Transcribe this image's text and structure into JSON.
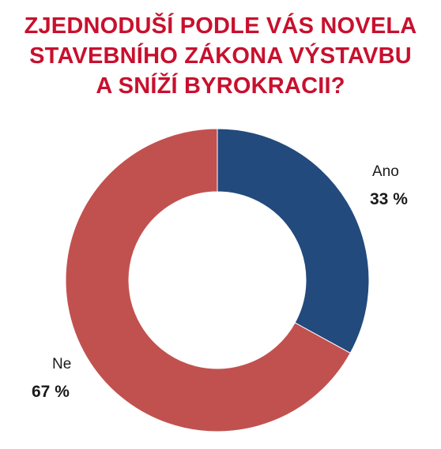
{
  "title_lines": [
    "ZJEDNODUŠÍ PODLE VÁS NOVELA",
    "STAVEBNÍHO ZÁKONA VÝSTAVBU",
    "A SNÍŽÍ BYROKRACII?"
  ],
  "colors": {
    "title": "#c8102e",
    "ano": "#234a7d",
    "ne": "#c1514f"
  },
  "chart_data": {
    "type": "pie",
    "subtype": "donut",
    "title": "ZJEDNODUŠÍ PODLE VÁS NOVELA STAVEBNÍHO ZÁKONA VÝSTAVBU A SNÍŽÍ BYROKRACII?",
    "categories": [
      "Ano",
      "Ne"
    ],
    "values": [
      33,
      67
    ],
    "value_labels": [
      "33 %",
      "67 %"
    ],
    "unit": "%",
    "start_angle": "12 o'clock",
    "direction": "clockwise",
    "legend": "none"
  }
}
